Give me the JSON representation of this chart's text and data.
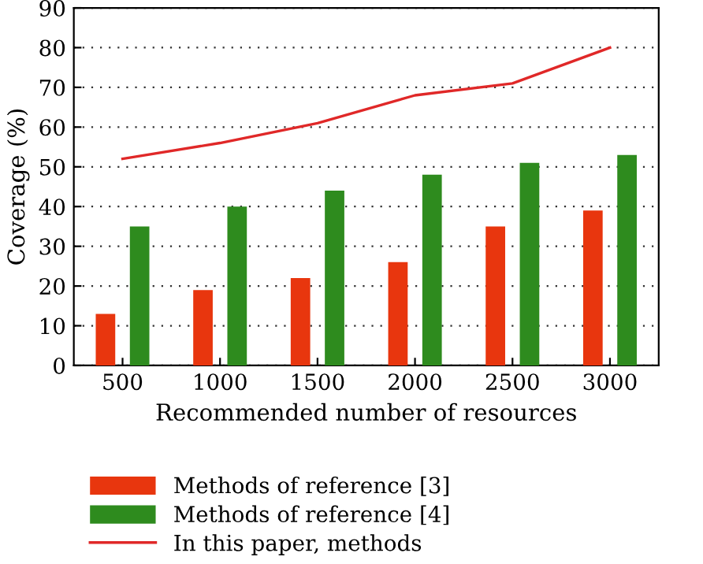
{
  "chart_data": {
    "type": "bar",
    "xlabel": "Recommended number of resources",
    "ylabel": "Coverage (%)",
    "categories": [
      "500",
      "1000",
      "1500",
      "2000",
      "2500",
      "3000"
    ],
    "series": [
      {
        "name": "Methods of reference [3]",
        "color": "#e8360e",
        "values": [
          13,
          19,
          22,
          26,
          35,
          39
        ]
      },
      {
        "name": "Methods of reference [4]",
        "color": "#2e8b1e",
        "values": [
          35,
          40,
          44,
          48,
          51,
          53
        ]
      },
      {
        "name": "In this paper, methods",
        "type": "line",
        "color": "#e02828",
        "values": [
          52,
          56,
          61,
          68,
          71,
          80
        ]
      }
    ],
    "ylim": [
      0,
      90
    ],
    "yticks": [
      0,
      10,
      20,
      30,
      40,
      50,
      60,
      70,
      80,
      90
    ],
    "grid": "y",
    "legend": "bottom"
  }
}
